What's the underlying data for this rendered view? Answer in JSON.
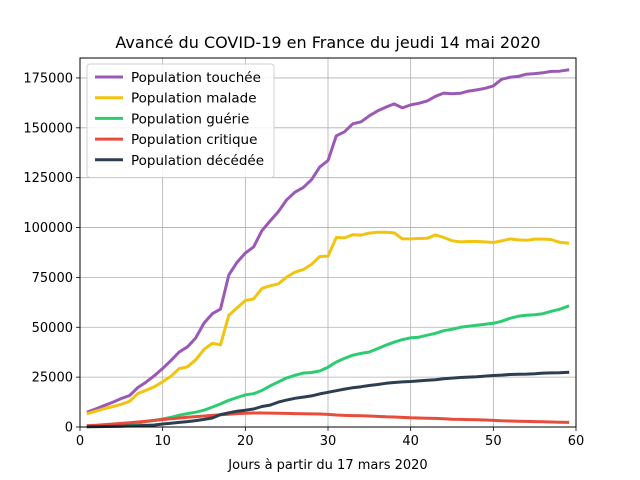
{
  "chart_data": {
    "type": "line",
    "title": "Avancé du COVID-19 en France du jeudi 14 mai 2020",
    "xlabel": "Jours à partir du 17 mars 2020",
    "ylabel": "",
    "xlim": [
      0,
      60
    ],
    "ylim": [
      0,
      185000
    ],
    "xticks": [
      0,
      10,
      20,
      30,
      40,
      50,
      60
    ],
    "yticks": [
      0,
      25000,
      50000,
      75000,
      100000,
      125000,
      150000,
      175000
    ],
    "grid": true,
    "legend_position": "upper left",
    "x": [
      1,
      2,
      3,
      4,
      5,
      6,
      7,
      8,
      9,
      10,
      11,
      12,
      13,
      14,
      15,
      16,
      17,
      18,
      19,
      20,
      21,
      22,
      23,
      24,
      25,
      26,
      27,
      28,
      29,
      30,
      31,
      32,
      33,
      34,
      35,
      36,
      37,
      38,
      39,
      40,
      41,
      42,
      43,
      44,
      45,
      46,
      47,
      48,
      49,
      50,
      51,
      52,
      53,
      54,
      55,
      56,
      57,
      58,
      59
    ],
    "series": [
      {
        "name": "Population touchée",
        "color": "#9b59b6",
        "values": [
          7700,
          9200,
          10900,
          12500,
          14300,
          15800,
          19800,
          22500,
          25700,
          29400,
          33300,
          37600,
          40200,
          44600,
          52100,
          56800,
          59100,
          76200,
          82600,
          87200,
          90300,
          98400,
          103300,
          108000,
          113900,
          117700,
          120000,
          124000,
          130300,
          133600,
          146000,
          148000,
          152000,
          153000,
          156000,
          158500,
          160400,
          162000,
          160000,
          161500,
          162300,
          163500,
          165800,
          167400,
          167100,
          167300,
          168400,
          169000,
          169800,
          171000,
          174300,
          175300,
          175800,
          176900,
          177200,
          177600,
          178300,
          178400,
          179000
        ]
      },
      {
        "name": "Population malade",
        "color": "#f1c40f",
        "values": [
          6800,
          8000,
          9300,
          10300,
          11400,
          12900,
          16800,
          18400,
          20200,
          22700,
          25400,
          29300,
          30200,
          33700,
          38900,
          41900,
          41200,
          56000,
          59700,
          63400,
          64200,
          69500,
          70800,
          71800,
          75200,
          77600,
          78900,
          81500,
          85500,
          85700,
          95000,
          94800,
          96400,
          96200,
          97200,
          97600,
          97600,
          97300,
          94300,
          94300,
          94500,
          94600,
          96300,
          95000,
          93400,
          92800,
          93000,
          93000,
          92800,
          92500,
          93300,
          94300,
          93800,
          93600,
          94200,
          94200,
          94000,
          92600,
          92200
        ]
      },
      {
        "name": "Population guérie",
        "color": "#2ecc71",
        "values": [
          200,
          500,
          700,
          1000,
          1300,
          1600,
          2000,
          2700,
          3300,
          4000,
          4800,
          5900,
          6700,
          7400,
          8400,
          10000,
          11600,
          13400,
          14800,
          16100,
          16700,
          18300,
          20600,
          22600,
          24600,
          25900,
          27000,
          27300,
          28100,
          30000,
          32600,
          34400,
          36000,
          36900,
          37600,
          39300,
          41000,
          42500,
          43800,
          44700,
          45000,
          46000,
          47000,
          48300,
          49000,
          50000,
          50500,
          51000,
          51500,
          52000,
          53000,
          54500,
          55500,
          56000,
          56300,
          56800,
          58000,
          59000,
          60500
        ]
      },
      {
        "name": "Population critique",
        "color": "#e74c3c",
        "values": [
          700,
          900,
          1200,
          1500,
          1800,
          2100,
          2500,
          2900,
          3300,
          3700,
          4100,
          4500,
          4900,
          5200,
          5500,
          5800,
          6100,
          6400,
          6700,
          6900,
          7000,
          7000,
          6950,
          6900,
          6800,
          6700,
          6600,
          6550,
          6500,
          6300,
          6000,
          5800,
          5700,
          5600,
          5500,
          5300,
          5100,
          5000,
          4800,
          4600,
          4500,
          4400,
          4300,
          4100,
          3900,
          3800,
          3700,
          3600,
          3500,
          3300,
          3100,
          3000,
          2900,
          2800,
          2700,
          2600,
          2500,
          2400,
          2300
        ]
      },
      {
        "name": "Population décédée",
        "color": "#2c3e50",
        "values": [
          150,
          200,
          250,
          300,
          400,
          500,
          600,
          800,
          1000,
          1500,
          1900,
          2300,
          2700,
          3200,
          3800,
          4500,
          6200,
          7100,
          7900,
          8400,
          9000,
          10300,
          11000,
          12500,
          13500,
          14400,
          15000,
          15600,
          16600,
          17400,
          18200,
          19000,
          19700,
          20200,
          20800,
          21300,
          21900,
          22300,
          22600,
          22800,
          23100,
          23400,
          23700,
          24200,
          24500,
          24800,
          25000,
          25200,
          25500,
          25800,
          26000,
          26300,
          26400,
          26500,
          26700,
          27000,
          27100,
          27200,
          27400
        ]
      }
    ]
  }
}
